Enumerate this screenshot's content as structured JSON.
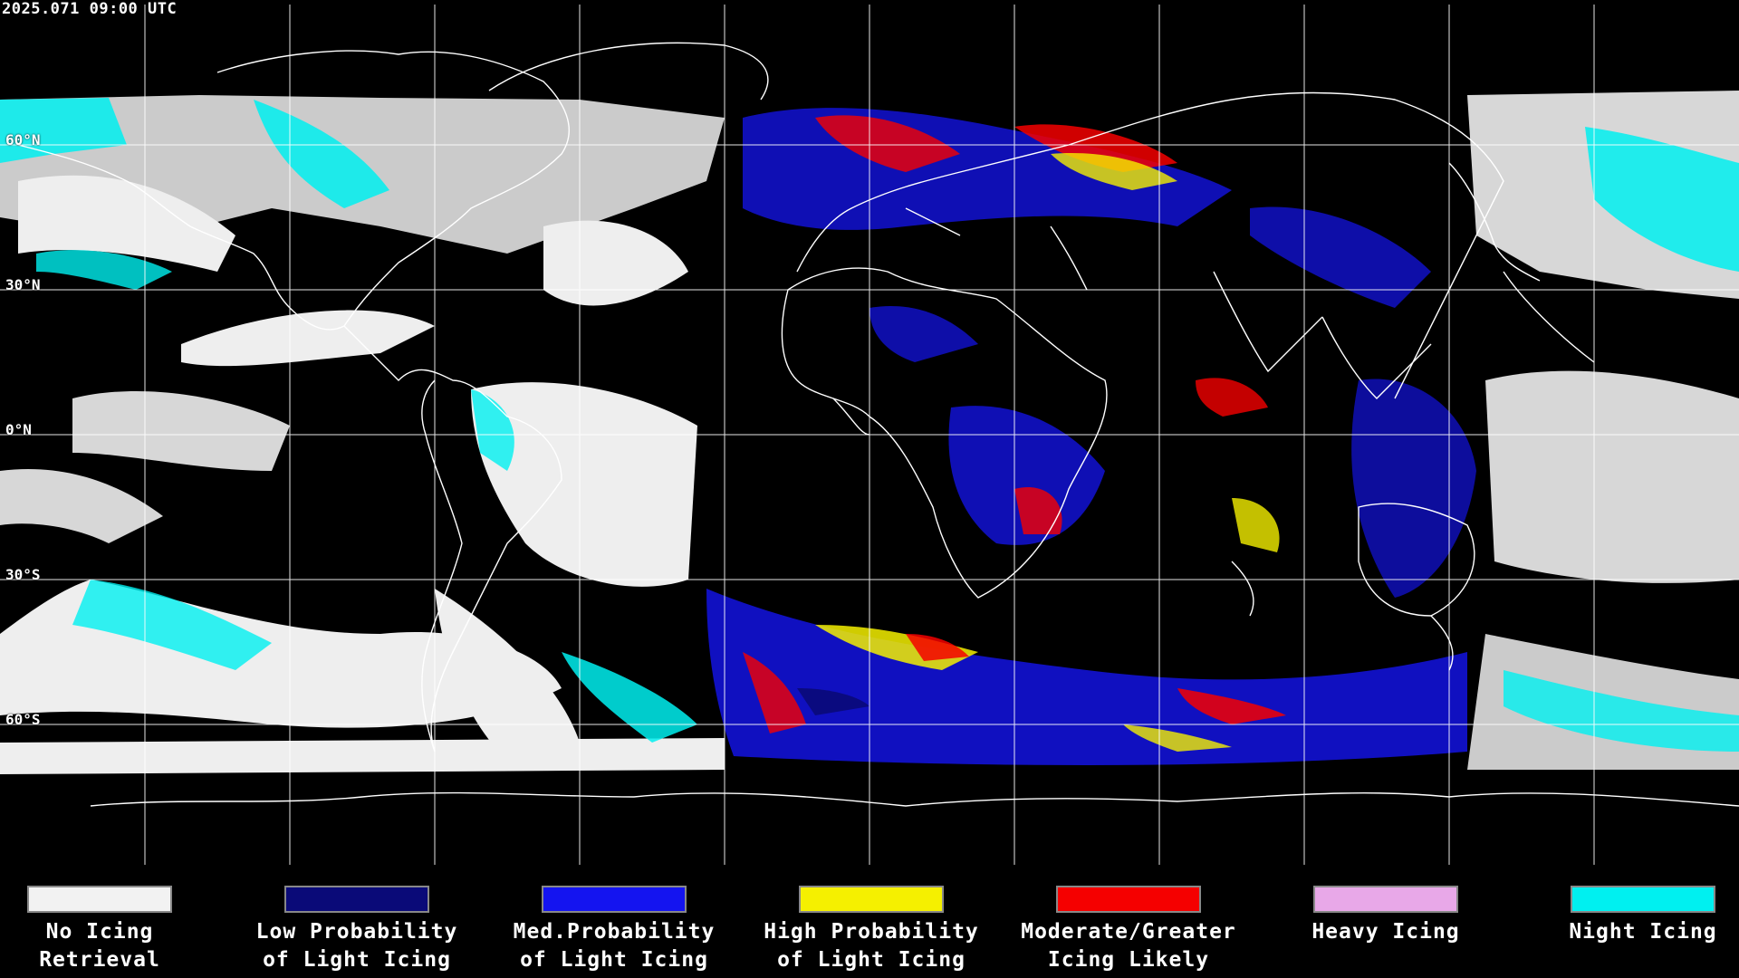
{
  "header": {
    "timestamp": "2025.071 09:00 UTC"
  },
  "map": {
    "latitude_labels": [
      {
        "id": "lat-60n",
        "text": "60°N"
      },
      {
        "id": "lat-30n",
        "text": "30°N"
      },
      {
        "id": "lat-0n",
        "text": "0°N"
      },
      {
        "id": "lat-30s",
        "text": "30°S"
      },
      {
        "id": "lat-60s",
        "text": "60°S"
      }
    ],
    "colors": {
      "background": "#000000",
      "no_icing": "#f2f2f2",
      "low_prob": "#0a0a78",
      "med_prob": "#1414f0",
      "high_prob": "#f5f000",
      "moderate": "#f50000",
      "heavy": "#e8a8e8",
      "night": "#00f0f0",
      "grid": "#ffffff",
      "coast": "#ffffff"
    }
  },
  "legend": {
    "items": [
      {
        "id": "no-icing-retrieval",
        "label": "No Icing\nRetrieval",
        "color": "#f2f2f2"
      },
      {
        "id": "low-probability",
        "label": "Low Probability\nof Light Icing",
        "color": "#0a0a78"
      },
      {
        "id": "med-probability",
        "label": "Med.Probability\nof Light Icing",
        "color": "#1414f0"
      },
      {
        "id": "high-probability",
        "label": "High Probability\nof Light Icing",
        "color": "#f5f000"
      },
      {
        "id": "moderate-greater",
        "label": "Moderate/Greater\nIcing Likely",
        "color": "#f50000"
      },
      {
        "id": "heavy-icing",
        "label": "Heavy Icing",
        "color": "#e8a8e8"
      },
      {
        "id": "night-icing",
        "label": "Night Icing",
        "color": "#00f0f0"
      }
    ]
  }
}
